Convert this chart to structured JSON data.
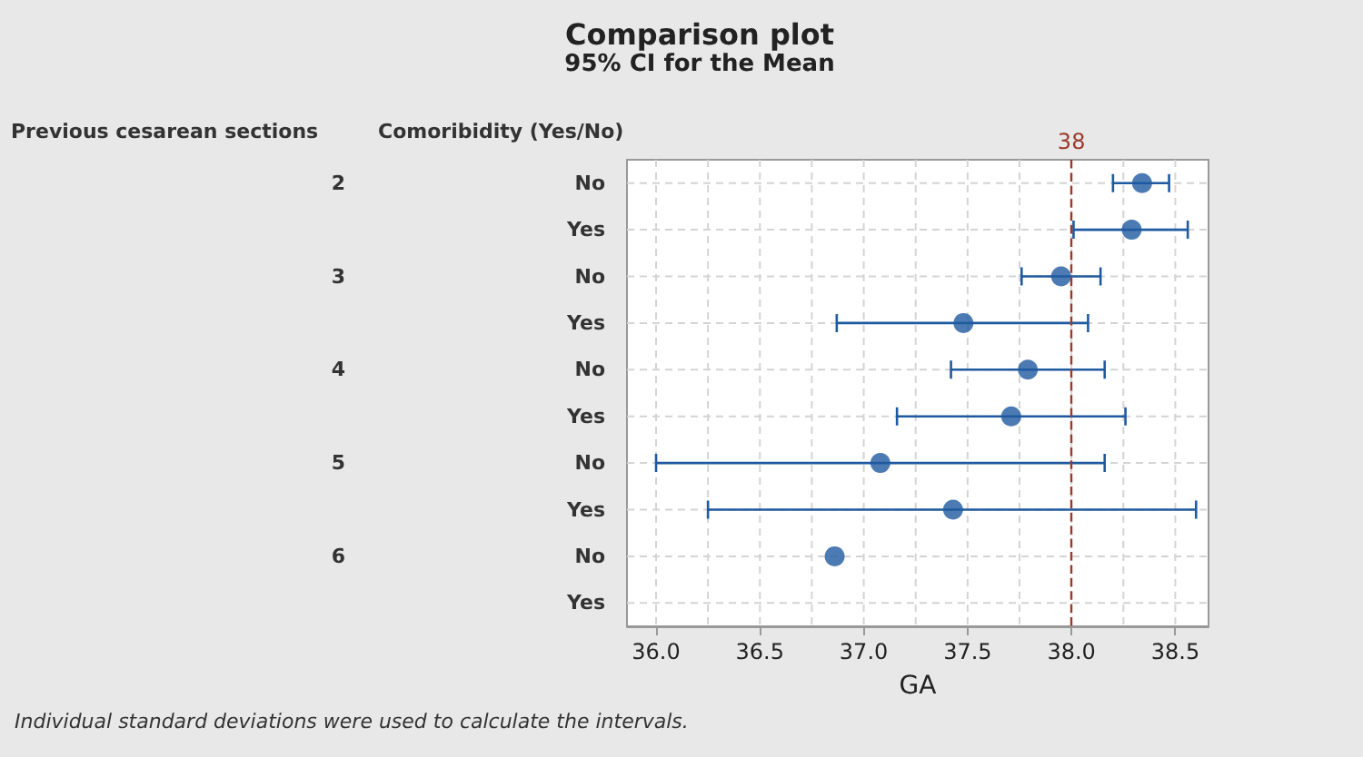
{
  "chart_data": {
    "type": "scatter",
    "title": "Comparison plot",
    "subtitle": "95% CI for the Mean",
    "xlabel": "GA",
    "ylabel": "Comoribidity (Yes/No)",
    "categories": [
      "No",
      "Yes",
      "No",
      "Yes",
      "No",
      "Yes",
      "No",
      "Yes",
      "No",
      "Yes"
    ],
    "series": [
      {
        "color": "#1f5aa0",
        "values": [
          38.34,
          38.29,
          37.95,
          37.48,
          37.79,
          37.71,
          37.08,
          37.43,
          36.86,
          null
        ],
        "errors": [
          [
            38.2,
            38.47
          ],
          [
            38.01,
            38.56
          ],
          [
            37.76,
            38.14
          ],
          [
            36.87,
            38.08
          ],
          [
            37.42,
            38.16
          ],
          [
            37.16,
            38.26
          ],
          [
            36.0,
            38.16
          ],
          [
            36.25,
            38.6
          ],
          null,
          null
        ]
      }
    ],
    "orientation": "horizontal",
    "xlim": [
      35.86,
      38.66
    ],
    "xticks": [
      {
        "value": 36,
        "label": "36.0"
      },
      {
        "value": 36.25,
        "label": null
      },
      {
        "value": 36.5,
        "label": "36.5"
      },
      {
        "value": 36.75,
        "label": null
      },
      {
        "value": 37,
        "label": "37.0"
      },
      {
        "value": 37.25,
        "label": null
      },
      {
        "value": 37.5,
        "label": "37.5"
      },
      {
        "value": 37.75,
        "label": null
      },
      {
        "value": 38,
        "label": "38.0"
      },
      {
        "value": 38.25,
        "label": null
      },
      {
        "value": 38.5,
        "label": "38.5"
      }
    ],
    "ref_lines": [
      {
        "axis": "x",
        "value": 38,
        "label": "38",
        "color": "#9c3a2a",
        "line_style": "dashed"
      }
    ],
    "annotations": [
      "Previous cesarean sections",
      "2",
      "3",
      "4",
      "5",
      "6",
      "Individual standard deviations were used to calculate the intervals."
    ],
    "grid": true,
    "marker": "circle"
  }
}
